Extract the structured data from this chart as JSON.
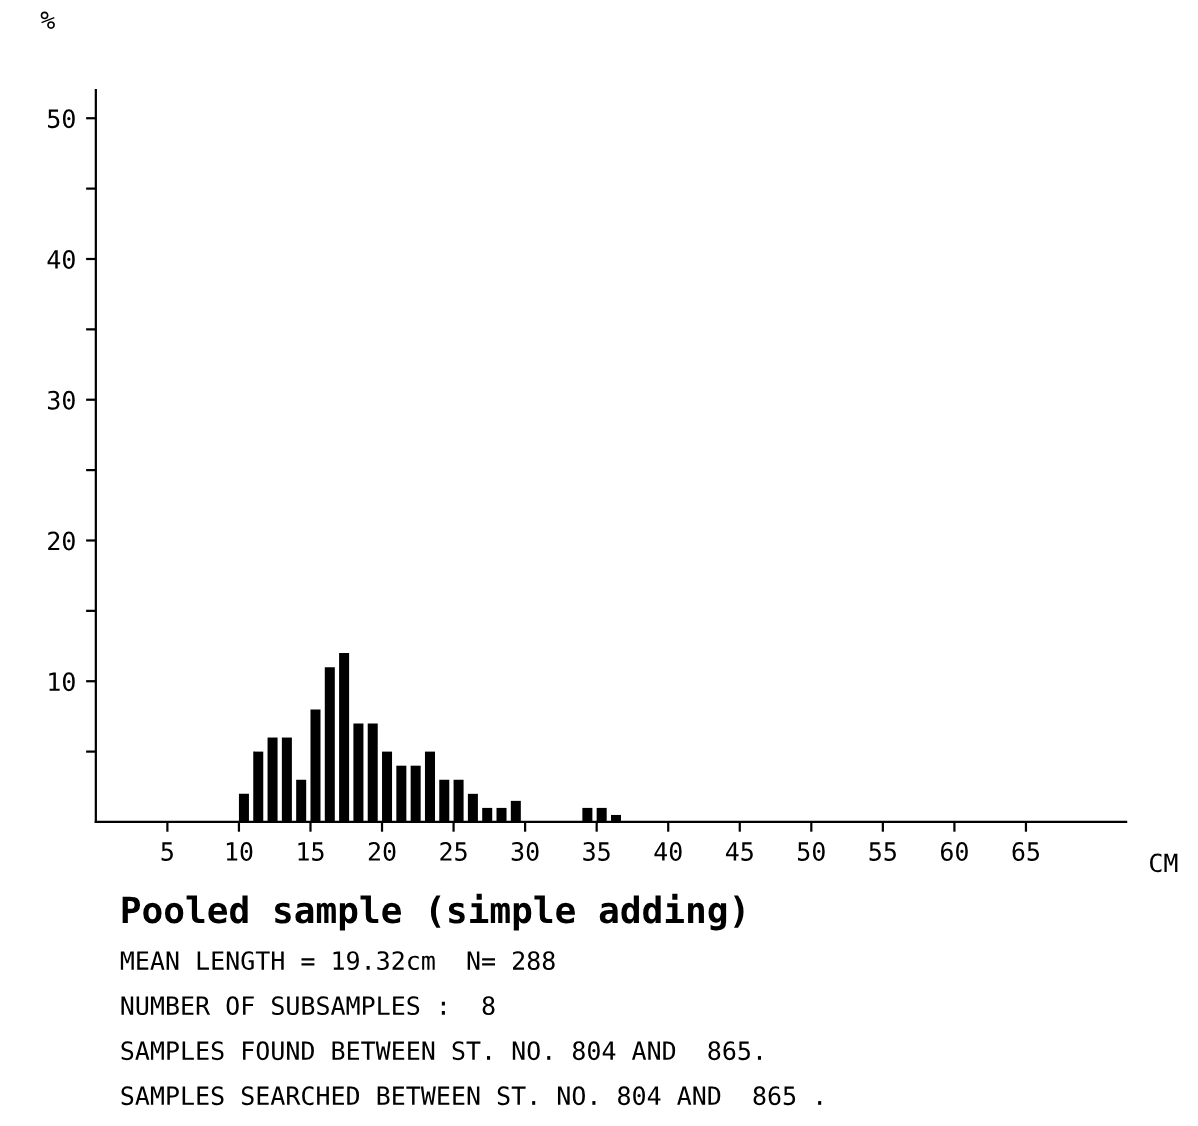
{
  "chart_data": {
    "type": "histogram",
    "ylabel": "%",
    "xlabel": "CM",
    "bins": [
      10,
      11,
      12,
      13,
      14,
      15,
      16,
      17,
      18,
      19,
      20,
      21,
      22,
      23,
      24,
      25,
      26,
      27,
      28,
      29,
      30,
      31,
      32,
      33,
      34,
      35,
      36,
      37
    ],
    "values": [
      2,
      5,
      6,
      6,
      3,
      8,
      11,
      12,
      7,
      7,
      5,
      4,
      4,
      5,
      3,
      3,
      2,
      1,
      1,
      1.5,
      0,
      0,
      0,
      0,
      1,
      1,
      0.5
    ],
    "color": "#000000",
    "xlim": [
      0,
      72
    ],
    "ylim": [
      0,
      52
    ],
    "xticks": [
      5,
      10,
      15,
      20,
      25,
      30,
      35,
      40,
      45,
      50,
      55,
      60,
      65
    ],
    "yticks": [
      {
        "value": 5,
        "label": null
      },
      10,
      {
        "value": 15,
        "label": null
      },
      20,
      {
        "value": 25,
        "label": null
      },
      30,
      {
        "value": 35,
        "label": null
      },
      40,
      {
        "value": 45,
        "label": null
      },
      50
    ],
    "grid": false,
    "annotations": [
      "Pooled sample (simple adding)",
      "MEAN LENGTH = 19.32cm  N= 288",
      "NUMBER OF SUBSAMPLES :  8",
      "SAMPLES FOUND BETWEEN ST. NO. 804 AND  865.",
      "SAMPLES SEARCHED BETWEEN ST. NO. 804 AND  865 ."
    ]
  }
}
